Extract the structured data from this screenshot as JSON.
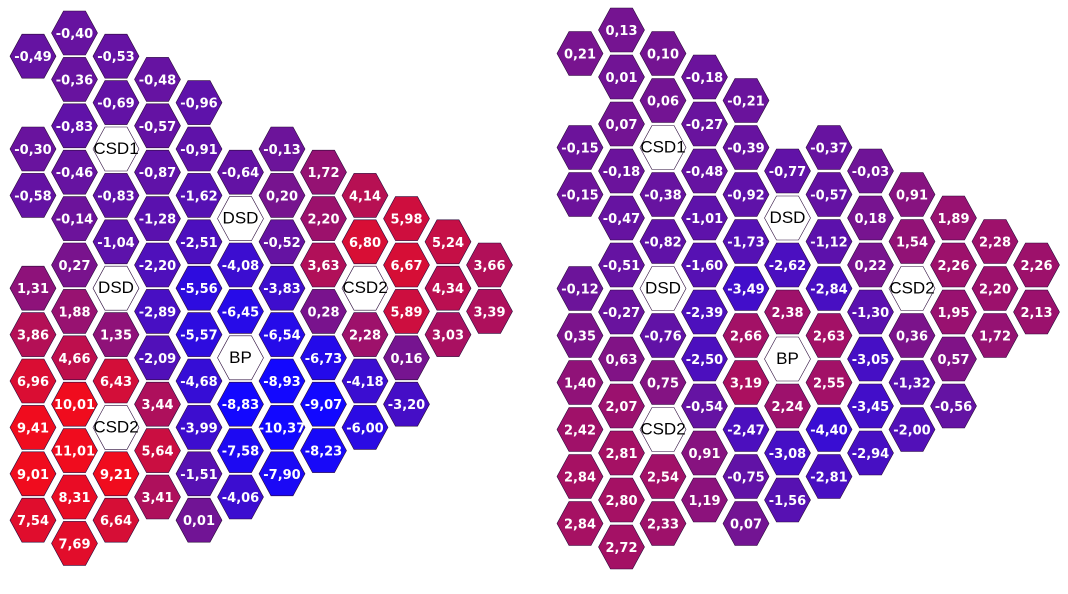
{
  "maps": [
    {
      "name": "left",
      "cells": [
        {
          "r": 0,
          "c": 2,
          "v": "-0,40"
        },
        {
          "r": 1,
          "c": 1,
          "v": "-0,49"
        },
        {
          "r": 1,
          "c": 3,
          "v": "-0,53"
        },
        {
          "r": 2,
          "c": 2,
          "v": "-0,36"
        },
        {
          "r": 2,
          "c": 4,
          "v": "-0,48"
        },
        {
          "r": 3,
          "c": 3,
          "v": "-0,69"
        },
        {
          "r": 3,
          "c": 5,
          "v": "-0,96"
        },
        {
          "r": 4,
          "c": 2,
          "v": "-0,83"
        },
        {
          "r": 4,
          "c": 4,
          "v": "-0,57"
        },
        {
          "r": 5,
          "c": 1,
          "v": "-0,30"
        },
        {
          "r": 5,
          "c": 3,
          "v": "CSD1",
          "label": true
        },
        {
          "r": 5,
          "c": 5,
          "v": "-0,91"
        },
        {
          "r": 5,
          "c": 7,
          "v": "-0,13"
        },
        {
          "r": 6,
          "c": 2,
          "v": "-0,46"
        },
        {
          "r": 6,
          "c": 4,
          "v": "-0,87"
        },
        {
          "r": 6,
          "c": 6,
          "v": "-0,64"
        },
        {
          "r": 6,
          "c": 8,
          "v": "1,72"
        },
        {
          "r": 7,
          "c": 1,
          "v": "-0,58"
        },
        {
          "r": 7,
          "c": 3,
          "v": "-0,83"
        },
        {
          "r": 7,
          "c": 5,
          "v": "-1,62"
        },
        {
          "r": 7,
          "c": 7,
          "v": "0,20"
        },
        {
          "r": 7,
          "c": 9,
          "v": "4,14"
        },
        {
          "r": 8,
          "c": 2,
          "v": "-0,14"
        },
        {
          "r": 8,
          "c": 4,
          "v": "-1,28"
        },
        {
          "r": 8,
          "c": 6,
          "v": "DSD",
          "label": true
        },
        {
          "r": 8,
          "c": 8,
          "v": "2,20"
        },
        {
          "r": 8,
          "c": 10,
          "v": "5,98"
        },
        {
          "r": 9,
          "c": 3,
          "v": "-1,04"
        },
        {
          "r": 9,
          "c": 5,
          "v": "-2,51"
        },
        {
          "r": 9,
          "c": 7,
          "v": "-0,52"
        },
        {
          "r": 9,
          "c": 9,
          "v": "6,80"
        },
        {
          "r": 9,
          "c": 11,
          "v": "5,24"
        },
        {
          "r": 10,
          "c": 2,
          "v": "0,27"
        },
        {
          "r": 10,
          "c": 4,
          "v": "-2,20"
        },
        {
          "r": 10,
          "c": 6,
          "v": "-4,08"
        },
        {
          "r": 10,
          "c": 8,
          "v": "3,63"
        },
        {
          "r": 10,
          "c": 10,
          "v": "6,67"
        },
        {
          "r": 10,
          "c": 12,
          "v": "3,66"
        },
        {
          "r": 11,
          "c": 1,
          "v": "1,31"
        },
        {
          "r": 11,
          "c": 3,
          "v": "DSD",
          "label": true
        },
        {
          "r": 11,
          "c": 5,
          "v": "-5,56"
        },
        {
          "r": 11,
          "c": 7,
          "v": "-3,83"
        },
        {
          "r": 11,
          "c": 9,
          "v": "CSD2",
          "label": true
        },
        {
          "r": 11,
          "c": 11,
          "v": "4,34"
        },
        {
          "r": 12,
          "c": 2,
          "v": "1,88"
        },
        {
          "r": 12,
          "c": 4,
          "v": "-2,89"
        },
        {
          "r": 12,
          "c": 6,
          "v": "-6,45"
        },
        {
          "r": 12,
          "c": 8,
          "v": "0,28"
        },
        {
          "r": 12,
          "c": 10,
          "v": "5,89"
        },
        {
          "r": 12,
          "c": 12,
          "v": "3,39"
        },
        {
          "r": 13,
          "c": 1,
          "v": "3,86"
        },
        {
          "r": 13,
          "c": 3,
          "v": "1,35"
        },
        {
          "r": 13,
          "c": 5,
          "v": "-5,57"
        },
        {
          "r": 13,
          "c": 7,
          "v": "-6,54"
        },
        {
          "r": 13,
          "c": 9,
          "v": "2,28"
        },
        {
          "r": 13,
          "c": 11,
          "v": "3,03"
        },
        {
          "r": 14,
          "c": 2,
          "v": "4,66"
        },
        {
          "r": 14,
          "c": 4,
          "v": "-2,09"
        },
        {
          "r": 14,
          "c": 6,
          "v": "BP",
          "label": true
        },
        {
          "r": 14,
          "c": 8,
          "v": "-6,73"
        },
        {
          "r": 14,
          "c": 10,
          "v": "0,16"
        },
        {
          "r": 15,
          "c": 1,
          "v": "6,96"
        },
        {
          "r": 15,
          "c": 3,
          "v": "6,43"
        },
        {
          "r": 15,
          "c": 5,
          "v": "-4,68"
        },
        {
          "r": 15,
          "c": 7,
          "v": "-8,93"
        },
        {
          "r": 15,
          "c": 9,
          "v": "-4,18"
        },
        {
          "r": 16,
          "c": 2,
          "v": "10,01"
        },
        {
          "r": 16,
          "c": 4,
          "v": "3,44"
        },
        {
          "r": 16,
          "c": 6,
          "v": "-8,83"
        },
        {
          "r": 16,
          "c": 8,
          "v": "-9,07"
        },
        {
          "r": 16,
          "c": 10,
          "v": "-3,20"
        },
        {
          "r": 17,
          "c": 1,
          "v": "9,41"
        },
        {
          "r": 17,
          "c": 3,
          "v": "CSD2",
          "label": true
        },
        {
          "r": 17,
          "c": 5,
          "v": "-3,99"
        },
        {
          "r": 17,
          "c": 7,
          "v": "-10,37"
        },
        {
          "r": 17,
          "c": 9,
          "v": "-6,00"
        },
        {
          "r": 18,
          "c": 2,
          "v": "11,01"
        },
        {
          "r": 18,
          "c": 4,
          "v": "5,64"
        },
        {
          "r": 18,
          "c": 6,
          "v": "-7,58"
        },
        {
          "r": 18,
          "c": 8,
          "v": "-8,23"
        },
        {
          "r": 19,
          "c": 1,
          "v": "9,01"
        },
        {
          "r": 19,
          "c": 3,
          "v": "9,21"
        },
        {
          "r": 19,
          "c": 5,
          "v": "-1,51"
        },
        {
          "r": 19,
          "c": 7,
          "v": "-7,90"
        },
        {
          "r": 20,
          "c": 2,
          "v": "8,31"
        },
        {
          "r": 20,
          "c": 4,
          "v": "3,41"
        },
        {
          "r": 20,
          "c": 6,
          "v": "-4,06"
        },
        {
          "r": 21,
          "c": 1,
          "v": "7,54"
        },
        {
          "r": 21,
          "c": 3,
          "v": "6,64"
        },
        {
          "r": 21,
          "c": 5,
          "v": "0,01"
        },
        {
          "r": 22,
          "c": 2,
          "v": "7,69"
        }
      ]
    },
    {
      "name": "right",
      "cells": [
        {
          "r": 0,
          "c": 2,
          "v": "0,13"
        },
        {
          "r": 1,
          "c": 1,
          "v": "0,21"
        },
        {
          "r": 1,
          "c": 3,
          "v": "0,10"
        },
        {
          "r": 2,
          "c": 2,
          "v": "0,01"
        },
        {
          "r": 2,
          "c": 4,
          "v": "-0,18"
        },
        {
          "r": 3,
          "c": 3,
          "v": "0,06"
        },
        {
          "r": 3,
          "c": 5,
          "v": "-0,21"
        },
        {
          "r": 4,
          "c": 2,
          "v": "0,07"
        },
        {
          "r": 4,
          "c": 4,
          "v": "-0,27"
        },
        {
          "r": 5,
          "c": 1,
          "v": "-0,15"
        },
        {
          "r": 5,
          "c": 3,
          "v": "CSD1",
          "label": true
        },
        {
          "r": 5,
          "c": 5,
          "v": "-0,39"
        },
        {
          "r": 5,
          "c": 7,
          "v": "-0,37"
        },
        {
          "r": 6,
          "c": 2,
          "v": "-0,18"
        },
        {
          "r": 6,
          "c": 4,
          "v": "-0,48"
        },
        {
          "r": 6,
          "c": 6,
          "v": "-0,77"
        },
        {
          "r": 6,
          "c": 8,
          "v": "-0,03"
        },
        {
          "r": 7,
          "c": 1,
          "v": "-0,15"
        },
        {
          "r": 7,
          "c": 3,
          "v": "-0,38"
        },
        {
          "r": 7,
          "c": 5,
          "v": "-0,92"
        },
        {
          "r": 7,
          "c": 7,
          "v": "-0,57"
        },
        {
          "r": 7,
          "c": 9,
          "v": "0,91"
        },
        {
          "r": 8,
          "c": 2,
          "v": "-0,47"
        },
        {
          "r": 8,
          "c": 4,
          "v": "-1,01"
        },
        {
          "r": 8,
          "c": 6,
          "v": "DSD",
          "label": true
        },
        {
          "r": 8,
          "c": 8,
          "v": "0,18"
        },
        {
          "r": 8,
          "c": 10,
          "v": "1,89"
        },
        {
          "r": 9,
          "c": 3,
          "v": "-0,82"
        },
        {
          "r": 9,
          "c": 5,
          "v": "-1,73"
        },
        {
          "r": 9,
          "c": 7,
          "v": "-1,12"
        },
        {
          "r": 9,
          "c": 9,
          "v": "1,54"
        },
        {
          "r": 9,
          "c": 11,
          "v": "2,28"
        },
        {
          "r": 10,
          "c": 2,
          "v": "-0,51"
        },
        {
          "r": 10,
          "c": 4,
          "v": "-1,60"
        },
        {
          "r": 10,
          "c": 6,
          "v": "-2,62"
        },
        {
          "r": 10,
          "c": 8,
          "v": "0,22"
        },
        {
          "r": 10,
          "c": 10,
          "v": "2,26"
        },
        {
          "r": 10,
          "c": 12,
          "v": "2,26"
        },
        {
          "r": 11,
          "c": 1,
          "v": "-0,12"
        },
        {
          "r": 11,
          "c": 3,
          "v": "DSD",
          "label": true
        },
        {
          "r": 11,
          "c": 5,
          "v": "-3,49"
        },
        {
          "r": 11,
          "c": 7,
          "v": "-2,84"
        },
        {
          "r": 11,
          "c": 9,
          "v": "CSD2",
          "label": true
        },
        {
          "r": 11,
          "c": 11,
          "v": "2,20"
        },
        {
          "r": 12,
          "c": 2,
          "v": "-0,27"
        },
        {
          "r": 12,
          "c": 4,
          "v": "-2,39"
        },
        {
          "r": 12,
          "c": 6,
          "v": "2,38"
        },
        {
          "r": 12,
          "c": 8,
          "v": "-1,30"
        },
        {
          "r": 12,
          "c": 10,
          "v": "1,95"
        },
        {
          "r": 12,
          "c": 12,
          "v": "2,13"
        },
        {
          "r": 13,
          "c": 1,
          "v": "0,35"
        },
        {
          "r": 13,
          "c": 3,
          "v": "-0,76"
        },
        {
          "r": 13,
          "c": 5,
          "v": "2,66"
        },
        {
          "r": 13,
          "c": 7,
          "v": "2,63"
        },
        {
          "r": 13,
          "c": 9,
          "v": "0,36"
        },
        {
          "r": 13,
          "c": 11,
          "v": "1,72"
        },
        {
          "r": 14,
          "c": 2,
          "v": "0,63"
        },
        {
          "r": 14,
          "c": 4,
          "v": "-2,50"
        },
        {
          "r": 14,
          "c": 6,
          "v": "BP",
          "label": true
        },
        {
          "r": 14,
          "c": 8,
          "v": "-3,05"
        },
        {
          "r": 14,
          "c": 10,
          "v": "0,57"
        },
        {
          "r": 15,
          "c": 1,
          "v": "1,40"
        },
        {
          "r": 15,
          "c": 3,
          "v": "0,75"
        },
        {
          "r": 15,
          "c": 5,
          "v": "3,19"
        },
        {
          "r": 15,
          "c": 7,
          "v": "2,55"
        },
        {
          "r": 15,
          "c": 9,
          "v": "-1,32"
        },
        {
          "r": 16,
          "c": 2,
          "v": "2,07"
        },
        {
          "r": 16,
          "c": 4,
          "v": "-0,54"
        },
        {
          "r": 16,
          "c": 6,
          "v": "2,24"
        },
        {
          "r": 16,
          "c": 8,
          "v": "-3,45"
        },
        {
          "r": 16,
          "c": 10,
          "v": "-0,56"
        },
        {
          "r": 17,
          "c": 1,
          "v": "2,42"
        },
        {
          "r": 17,
          "c": 3,
          "v": "CSD2",
          "label": true
        },
        {
          "r": 17,
          "c": 5,
          "v": "-2,47"
        },
        {
          "r": 17,
          "c": 7,
          "v": "-4,40"
        },
        {
          "r": 17,
          "c": 9,
          "v": "-2,00"
        },
        {
          "r": 18,
          "c": 2,
          "v": "2,81"
        },
        {
          "r": 18,
          "c": 4,
          "v": "0,91"
        },
        {
          "r": 18,
          "c": 6,
          "v": "-3,08"
        },
        {
          "r": 18,
          "c": 8,
          "v": "-2,94"
        },
        {
          "r": 19,
          "c": 1,
          "v": "2,84"
        },
        {
          "r": 19,
          "c": 3,
          "v": "2,54"
        },
        {
          "r": 19,
          "c": 5,
          "v": "-0,75"
        },
        {
          "r": 19,
          "c": 7,
          "v": "-2,81"
        },
        {
          "r": 20,
          "c": 2,
          "v": "2,80"
        },
        {
          "r": 20,
          "c": 4,
          "v": "1,19"
        },
        {
          "r": 20,
          "c": 6,
          "v": "-1,56"
        },
        {
          "r": 21,
          "c": 1,
          "v": "2,84"
        },
        {
          "r": 21,
          "c": 3,
          "v": "2,33"
        },
        {
          "r": 21,
          "c": 5,
          "v": "0,07"
        },
        {
          "r": 22,
          "c": 2,
          "v": "2,72"
        }
      ]
    }
  ]
}
